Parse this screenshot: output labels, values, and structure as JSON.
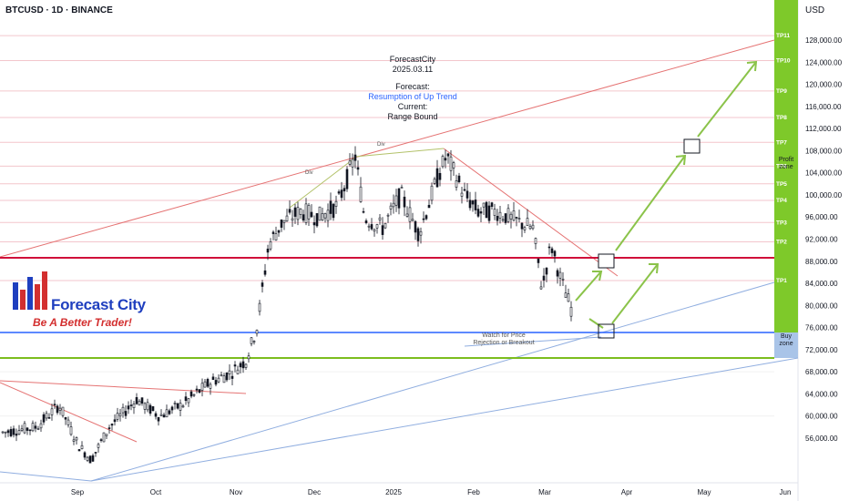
{
  "header": {
    "symbol": "BTCUSD · 1D · BINANCE",
    "currency": "USD"
  },
  "annotation": {
    "author": "ForecastCity",
    "date": "2025.03.11",
    "forecast_label": "Forecast:",
    "forecast_value": "Resumption of Up Trend",
    "current_label": "Current:",
    "current_value": "Range Bound"
  },
  "logo": {
    "name": "Forecast City",
    "tagline": "Be A Better Trader!"
  },
  "notes": {
    "watch_line1": "Watch for Price",
    "watch_line2": "Rejection or Breakout",
    "div_top": "Div",
    "div_left": "Div"
  },
  "zones": {
    "profit_line1": "Profit",
    "profit_line2": "zone",
    "buy_line1": "Buy",
    "buy_line2": "zone"
  },
  "price_axis": [
    {
      "label": "128,000.00",
      "value": 128000
    },
    {
      "label": "124,000.00",
      "value": 124000
    },
    {
      "label": "120,000.00",
      "value": 120000
    },
    {
      "label": "116,000.00",
      "value": 116000
    },
    {
      "label": "112,000.00",
      "value": 112000
    },
    {
      "label": "108,000.00",
      "value": 108000
    },
    {
      "label": "104,000.00",
      "value": 104000
    },
    {
      "label": "100,000.00",
      "value": 100000
    },
    {
      "label": "96,000.00",
      "value": 96000
    },
    {
      "label": "92,000.00",
      "value": 92000
    },
    {
      "label": "88,000.00",
      "value": 88000
    },
    {
      "label": "84,000.00",
      "value": 84000
    },
    {
      "label": "80,000.00",
      "value": 80000
    },
    {
      "label": "76,000.00",
      "value": 76000
    },
    {
      "label": "72,000.00",
      "value": 72000
    },
    {
      "label": "68,000.00",
      "value": 68000
    },
    {
      "label": "64,000.00",
      "value": 64000
    },
    {
      "label": "60,000.00",
      "value": 60000
    },
    {
      "label": "56,000.00",
      "value": 56000
    }
  ],
  "time_axis": [
    "Sep",
    "Oct",
    "Nov",
    "Dec",
    "2025",
    "Feb",
    "Mar",
    "Apr",
    "May",
    "Jun"
  ],
  "take_profits": [
    {
      "label": "TP1",
      "value": 84500
    },
    {
      "label": "TP2",
      "value": 91500
    },
    {
      "label": "TP3",
      "value": 95000
    },
    {
      "label": "TP4",
      "value": 99000
    },
    {
      "label": "TP5",
      "value": 102000
    },
    {
      "label": "TP6",
      "value": 105200
    },
    {
      "label": "TP7",
      "value": 109500
    },
    {
      "label": "TP8",
      "value": 114000
    },
    {
      "label": "TP9",
      "value": 118800
    },
    {
      "label": "TP10",
      "value": 124300
    },
    {
      "label": "TP11",
      "value": 128800
    }
  ],
  "colors": {
    "resistance": "#d0103a",
    "support": "#2962ff",
    "buy_zone_bottom": "#7cbd1e",
    "profit_zone": "#7ec92a",
    "trend_up": "#e57373",
    "arrow": "#8bc34a",
    "candle": "#131722"
  },
  "levels": {
    "resistance": 91000,
    "buy_zone_top": 78000,
    "buy_zone_bottom": 73500
  }
}
